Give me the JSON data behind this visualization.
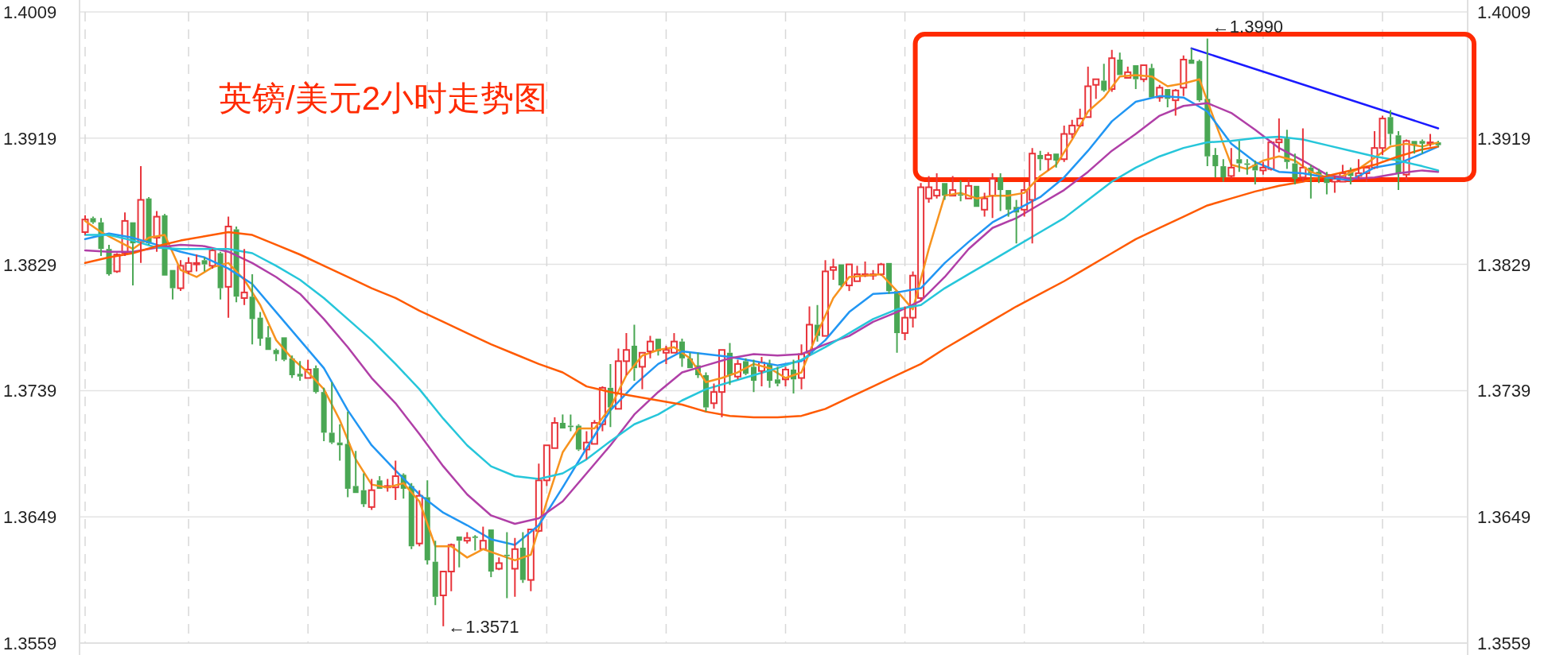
{
  "chart_data": {
    "type": "candlestick",
    "title": "英镑/美元2小时走势图",
    "categories": [
      null,
      null,
      null,
      null,
      null,
      null,
      null,
      null,
      null,
      null,
      null,
      null,
      null,
      null,
      null,
      null,
      null,
      null,
      null,
      null,
      null,
      null,
      null,
      null,
      null,
      null,
      null,
      null,
      null,
      null,
      null,
      null,
      null,
      null,
      null,
      null,
      null,
      null,
      null,
      null,
      null,
      null,
      null,
      null,
      null,
      null,
      null,
      null,
      null,
      null,
      null,
      null,
      null,
      null,
      null,
      null,
      null,
      null,
      null,
      null,
      null,
      null,
      null,
      null,
      null,
      null,
      null,
      null,
      null,
      null,
      null,
      null,
      null,
      null,
      null,
      null,
      null,
      null,
      null,
      null,
      null,
      null,
      null,
      null,
      null,
      null,
      null,
      null,
      null,
      null,
      null,
      null,
      null,
      null,
      null,
      null,
      null,
      null,
      null,
      null,
      null,
      null,
      null,
      null,
      null,
      null,
      null,
      null,
      null,
      null,
      null,
      null,
      null,
      null,
      null,
      null,
      null,
      null,
      null,
      null,
      null,
      null,
      null,
      null,
      null,
      null,
      null,
      null,
      null,
      null,
      null,
      null,
      null,
      null,
      null,
      null,
      null,
      null,
      null,
      null,
      null,
      null,
      null,
      null,
      null,
      null,
      null,
      null,
      null,
      null,
      null,
      null,
      null,
      null,
      null,
      null,
      null,
      null,
      null,
      null,
      null,
      null,
      null,
      null,
      null,
      null,
      null,
      null,
      null,
      null,
      null
    ],
    "ohlc": [
      [
        1.3852,
        1.3864,
        1.385,
        1.3861
      ],
      [
        1.3862,
        1.3863,
        1.3858,
        1.3859
      ],
      [
        1.3859,
        1.3862,
        1.3835,
        1.384
      ],
      [
        1.384,
        1.3843,
        1.3821,
        1.3822
      ],
      [
        1.3824,
        1.3837,
        1.3823,
        1.3836
      ],
      [
        1.3837,
        1.3866,
        1.3835,
        1.386
      ],
      [
        1.3859,
        1.3859,
        1.3814,
        1.3844
      ],
      [
        1.3845,
        1.3899,
        1.383,
        1.3875
      ],
      [
        1.3876,
        1.3877,
        1.3843,
        1.3844
      ],
      [
        1.3848,
        1.3867,
        1.3838,
        1.3863
      ],
      [
        1.3864,
        1.3865,
        1.3821,
        1.3821
      ],
      [
        1.3825,
        1.3825,
        1.3804,
        1.3812
      ],
      [
        1.3812,
        1.3832,
        1.381,
        1.3828
      ],
      [
        1.3824,
        1.3834,
        1.3822,
        1.383
      ],
      [
        1.3829,
        1.3836,
        1.3824,
        1.383
      ],
      [
        1.3832,
        1.3834,
        1.3824,
        1.3829
      ],
      [
        1.3828,
        1.384,
        1.3826,
        1.3839
      ],
      [
        1.3837,
        1.3838,
        1.3804,
        1.3812
      ],
      [
        1.3813,
        1.3863,
        1.3791,
        1.3856
      ],
      [
        1.3854,
        1.3856,
        1.3802,
        1.3806
      ],
      [
        1.3805,
        1.384,
        1.38,
        1.3809
      ],
      [
        1.3806,
        1.3822,
        1.3772,
        1.379
      ],
      [
        1.3791,
        1.3795,
        1.3771,
        1.3776
      ],
      [
        1.3777,
        1.3785,
        1.3768,
        1.3768
      ],
      [
        1.3768,
        1.3769,
        1.376,
        1.3765
      ],
      [
        1.3777,
        1.3777,
        1.376,
        1.3761
      ],
      [
        1.3762,
        1.3764,
        1.3748,
        1.375
      ],
      [
        1.3751,
        1.376,
        1.3746,
        1.3749
      ],
      [
        1.3748,
        1.3761,
        1.3748,
        1.3754
      ],
      [
        1.3755,
        1.3757,
        1.3737,
        1.3738
      ],
      [
        1.3738,
        1.3741,
        1.3703,
        1.3709
      ],
      [
        1.3709,
        1.3745,
        1.3701,
        1.3702
      ],
      [
        1.3702,
        1.3715,
        1.3689,
        1.37
      ],
      [
        1.3701,
        1.3724,
        1.3663,
        1.3669
      ],
      [
        1.3671,
        1.3696,
        1.3666,
        1.3666
      ],
      [
        1.3668,
        1.368,
        1.3656,
        1.3658
      ],
      [
        1.3656,
        1.3676,
        1.3654,
        1.3668
      ],
      [
        1.3675,
        1.3678,
        1.3669,
        1.3669
      ],
      [
        1.367,
        1.3676,
        1.3667,
        1.3671
      ],
      [
        1.367,
        1.3689,
        1.3661,
        1.3678
      ],
      [
        1.3679,
        1.368,
        1.3662,
        1.3669
      ],
      [
        1.3671,
        1.3673,
        1.3626,
        1.3628
      ],
      [
        1.363,
        1.3668,
        1.3628,
        1.3664
      ],
      [
        1.3663,
        1.3675,
        1.3615,
        1.3618
      ],
      [
        1.3617,
        1.3632,
        1.3586,
        1.3592
      ],
      [
        1.3593,
        1.361,
        1.3571,
        1.361
      ],
      [
        1.361,
        1.363,
        1.3596,
        1.3629
      ],
      [
        1.3635,
        1.3635,
        1.3613,
        1.3632
      ],
      [
        1.3632,
        1.3638,
        1.363,
        1.3634
      ],
      [
        1.3635,
        1.3636,
        1.3625,
        1.3634
      ],
      [
        1.3626,
        1.3642,
        1.3626,
        1.3632
      ],
      [
        1.364,
        1.364,
        1.3606,
        1.361
      ],
      [
        1.3612,
        1.362,
        1.3611,
        1.3616
      ],
      [
        1.3622,
        1.3638,
        1.3591,
        1.3621
      ],
      [
        1.3612,
        1.3634,
        1.3592,
        1.3626
      ],
      [
        1.3627,
        1.3638,
        1.3602,
        1.3604
      ],
      [
        1.3604,
        1.364,
        1.3596,
        1.364
      ],
      [
        1.3639,
        1.3687,
        1.3638,
        1.3675
      ],
      [
        1.3675,
        1.37,
        1.3671,
        1.37
      ],
      [
        1.3698,
        1.372,
        1.3698,
        1.3716
      ],
      [
        1.3716,
        1.3722,
        1.3712,
        1.3712
      ],
      [
        1.3714,
        1.3722,
        1.371,
        1.3713
      ],
      [
        1.3714,
        1.3715,
        1.3696,
        1.3697
      ],
      [
        1.3697,
        1.371,
        1.369,
        1.3702
      ],
      [
        1.3701,
        1.3718,
        1.3701,
        1.3716
      ],
      [
        1.3715,
        1.3742,
        1.371,
        1.3741
      ],
      [
        1.3741,
        1.3758,
        1.3713,
        1.3727
      ],
      [
        1.3726,
        1.3769,
        1.3726,
        1.376
      ],
      [
        1.376,
        1.378,
        1.375,
        1.3768
      ],
      [
        1.3771,
        1.3786,
        1.3746,
        1.3755
      ],
      [
        1.3756,
        1.3766,
        1.374,
        1.3766
      ],
      [
        1.3767,
        1.3778,
        1.3762,
        1.3774
      ],
      [
        1.3776,
        1.3776,
        1.3764,
        1.3767
      ],
      [
        1.3766,
        1.3771,
        1.3758,
        1.3768
      ],
      [
        1.3766,
        1.378,
        1.3766,
        1.3774
      ],
      [
        1.3774,
        1.3776,
        1.3756,
        1.3762
      ],
      [
        1.3762,
        1.3766,
        1.3755,
        1.3755
      ],
      [
        1.3757,
        1.3766,
        1.3748,
        1.375
      ],
      [
        1.375,
        1.3752,
        1.3724,
        1.3727
      ],
      [
        1.373,
        1.3744,
        1.3726,
        1.3738
      ],
      [
        1.3738,
        1.3768,
        1.372,
        1.3768
      ],
      [
        1.3766,
        1.3773,
        1.3743,
        1.375
      ],
      [
        1.3749,
        1.3761,
        1.3747,
        1.3758
      ],
      [
        1.376,
        1.3762,
        1.375,
        1.3751
      ],
      [
        1.3756,
        1.3761,
        1.3738,
        1.3746
      ],
      [
        1.3753,
        1.3763,
        1.3742,
        1.3759
      ],
      [
        1.3758,
        1.3761,
        1.3741,
        1.3746
      ],
      [
        1.3747,
        1.3756,
        1.3742,
        1.3744
      ],
      [
        1.3747,
        1.3756,
        1.3742,
        1.3754
      ],
      [
        1.3754,
        1.3761,
        1.3737,
        1.3747
      ],
      [
        1.3748,
        1.3772,
        1.374,
        1.3765
      ],
      [
        1.3766,
        1.3799,
        1.3764,
        1.3786
      ],
      [
        1.3786,
        1.38,
        1.3774,
        1.3778
      ],
      [
        1.3778,
        1.3832,
        1.3778,
        1.3824
      ],
      [
        1.3825,
        1.3833,
        1.3818,
        1.3827
      ],
      [
        1.3829,
        1.3829,
        1.3813,
        1.3814
      ],
      [
        1.3814,
        1.3829,
        1.381,
        1.3829
      ],
      [
        1.3817,
        1.3828,
        1.3817,
        1.3822
      ],
      [
        1.3821,
        1.3831,
        1.382,
        1.3822
      ],
      [
        1.3821,
        1.3825,
        1.3818,
        1.3822
      ],
      [
        1.3822,
        1.383,
        1.3821,
        1.3829
      ],
      [
        1.383,
        1.383,
        1.3808,
        1.381
      ],
      [
        1.381,
        1.381,
        1.3766,
        1.378
      ],
      [
        1.378,
        1.3799,
        1.3775,
        1.3791
      ],
      [
        1.3791,
        1.3824,
        1.3784,
        1.3821
      ],
      [
        1.3805,
        1.3887,
        1.3803,
        1.3884
      ],
      [
        1.3876,
        1.3892,
        1.3873,
        1.3884
      ],
      [
        1.3878,
        1.3894,
        1.3876,
        1.3882
      ],
      [
        1.3887,
        1.3887,
        1.3875,
        1.3878
      ],
      [
        1.3878,
        1.3892,
        1.3878,
        1.3882
      ],
      [
        1.3879,
        1.3889,
        1.3874,
        1.3878
      ],
      [
        1.3876,
        1.389,
        1.3876,
        1.3885
      ],
      [
        1.3885,
        1.3885,
        1.387,
        1.387
      ],
      [
        1.3868,
        1.388,
        1.3863,
        1.3876
      ],
      [
        1.3878,
        1.3894,
        1.3862,
        1.389
      ],
      [
        1.3891,
        1.3894,
        1.3867,
        1.3882
      ],
      [
        1.3882,
        1.3882,
        1.3863,
        1.3868
      ],
      [
        1.387,
        1.3875,
        1.3844,
        1.3866
      ],
      [
        1.3868,
        1.3888,
        1.3863,
        1.3882
      ],
      [
        1.3875,
        1.3912,
        1.3844,
        1.3908
      ],
      [
        1.3907,
        1.391,
        1.3896,
        1.3904
      ],
      [
        1.3904,
        1.3909,
        1.3896,
        1.3907
      ],
      [
        1.3908,
        1.3908,
        1.3898,
        1.3903
      ],
      [
        1.3904,
        1.3928,
        1.3902,
        1.3922
      ],
      [
        1.3922,
        1.3932,
        1.3919,
        1.3928
      ],
      [
        1.3928,
        1.394,
        1.3927,
        1.3933
      ],
      [
        1.3934,
        1.397,
        1.3934,
        1.3956
      ],
      [
        1.3957,
        1.3961,
        1.3947,
        1.3961
      ],
      [
        1.396,
        1.3972,
        1.3952,
        1.3953
      ],
      [
        1.3954,
        1.3982,
        1.3952,
        1.3976
      ],
      [
        1.3975,
        1.398,
        1.3964,
        1.3964
      ],
      [
        1.3962,
        1.397,
        1.3962,
        1.3966
      ],
      [
        1.3971,
        1.3971,
        1.3954,
        1.3961
      ],
      [
        1.3961,
        1.3971,
        1.3959,
        1.3971
      ],
      [
        1.3969,
        1.3972,
        1.3948,
        1.3948
      ],
      [
        1.3948,
        1.3957,
        1.3945,
        1.3955
      ],
      [
        1.3954,
        1.3954,
        1.3941,
        1.3947
      ],
      [
        1.3946,
        1.3954,
        1.3935,
        1.3953
      ],
      [
        1.3955,
        1.3978,
        1.3949,
        1.3975
      ],
      [
        1.3975,
        1.3983,
        1.3972,
        1.3972
      ],
      [
        1.3974,
        1.3975,
        1.3945,
        1.3946
      ],
      [
        1.3947,
        1.399,
        1.3899,
        1.3906
      ],
      [
        1.3907,
        1.3912,
        1.3891,
        1.3899
      ],
      [
        1.3899,
        1.3904,
        1.3888,
        1.3891
      ],
      [
        1.3892,
        1.3912,
        1.389,
        1.3898
      ],
      [
        1.3904,
        1.3917,
        1.3895,
        1.3901
      ],
      [
        1.3901,
        1.3904,
        1.3893,
        1.39
      ],
      [
        1.39,
        1.3903,
        1.3886,
        1.3896
      ],
      [
        1.3896,
        1.3902,
        1.3893,
        1.3898
      ],
      [
        1.3897,
        1.3917,
        1.3896,
        1.3916
      ],
      [
        1.3916,
        1.3933,
        1.3909,
        1.3918
      ],
      [
        1.3919,
        1.3925,
        1.3897,
        1.3902
      ],
      [
        1.3901,
        1.3908,
        1.3886,
        1.389
      ],
      [
        1.3891,
        1.3926,
        1.3888,
        1.3898
      ],
      [
        1.3898,
        1.39,
        1.3876,
        1.3894
      ],
      [
        1.3895,
        1.3897,
        1.3887,
        1.3892
      ],
      [
        1.3892,
        1.3895,
        1.3879,
        1.3887
      ],
      [
        1.3888,
        1.3892,
        1.388,
        1.389
      ],
      [
        1.3888,
        1.39,
        1.3888,
        1.3894
      ],
      [
        1.3896,
        1.3898,
        1.3886,
        1.3892
      ],
      [
        1.3892,
        1.3904,
        1.389,
        1.3894
      ],
      [
        1.3894,
        1.3899,
        1.3888,
        1.3898
      ],
      [
        1.3898,
        1.3924,
        1.3897,
        1.3912
      ],
      [
        1.3912,
        1.3935,
        1.3907,
        1.3933
      ],
      [
        1.3934,
        1.3939,
        1.3914,
        1.3922
      ],
      [
        1.3921,
        1.3924,
        1.3882,
        1.3894
      ],
      [
        1.3893,
        1.3918,
        1.3889,
        1.3917
      ],
      [
        1.3917,
        1.3917,
        1.3908,
        1.3914
      ],
      [
        1.3917,
        1.3918,
        1.3908,
        1.3915
      ],
      [
        1.3915,
        1.3922,
        1.3913,
        1.3916
      ],
      [
        1.3916,
        1.3917,
        1.3913,
        1.3914
      ]
    ],
    "series": [
      {
        "type": "line",
        "color": "#f7931e",
        "values": [
          1.386,
          null,
          1.3852,
          null,
          1.3846,
          null,
          1.384,
          null,
          1.3848,
          null,
          1.385,
          null,
          1.3825,
          null,
          1.382,
          null,
          1.3827,
          null,
          1.383,
          null,
          1.3818,
          null,
          1.38,
          null,
          1.3775,
          null,
          1.3762,
          null,
          1.3752,
          null,
          1.374,
          null,
          1.3718,
          null,
          1.369,
          null,
          1.3672,
          null,
          1.367,
          null,
          1.3673,
          null,
          1.366,
          null,
          1.3628,
          null,
          1.3628,
          null,
          1.362,
          null,
          1.3626,
          null,
          1.3622,
          null,
          1.3618,
          null,
          1.3622,
          null,
          1.366,
          null,
          1.3695,
          null,
          1.3712,
          null,
          1.3712,
          null,
          1.3727,
          null,
          1.375,
          null,
          1.3764,
          null,
          1.3768,
          null,
          1.377,
          null,
          1.3762,
          null,
          1.3745,
          null,
          1.3748,
          null,
          1.3752,
          null,
          1.3758,
          null,
          1.3755,
          null,
          1.3748,
          null,
          1.3752,
          null,
          1.378,
          null,
          1.3805,
          null,
          1.382,
          null,
          1.3821,
          null,
          1.3822,
          null,
          1.381,
          null,
          1.3797,
          null,
          1.384,
          null,
          1.3878,
          null,
          1.388,
          null,
          1.3876,
          null,
          1.3878,
          null,
          1.3878,
          null,
          1.388,
          null,
          1.3892,
          null,
          1.39,
          null,
          1.3918,
          null,
          1.3938,
          null,
          1.3948,
          null,
          1.3963,
          null,
          1.3964,
          null,
          1.3963,
          null,
          1.3956,
          null,
          1.3958,
          null,
          1.3961,
          null,
          1.393,
          null,
          1.39,
          null,
          1.3897,
          null,
          1.3903,
          null,
          1.3906,
          null,
          1.3903,
          null,
          1.3895,
          null,
          1.3891,
          null,
          1.3892,
          null,
          1.3897,
          null,
          1.3905,
          null,
          1.3913,
          null,
          1.3915,
          null,
          1.3913,
          null,
          1.3916
        ]
      },
      {
        "type": "line",
        "color": "#2196f3",
        "values": [
          1.3847,
          null,
          null,
          1.3851,
          null,
          null,
          1.3848,
          null,
          null,
          1.3843,
          null,
          null,
          1.3838,
          null,
          null,
          1.3834,
          null,
          null,
          1.3826,
          null,
          null,
          1.3815,
          null,
          null,
          1.3795,
          null,
          null,
          1.3775,
          null,
          null,
          1.3755,
          null,
          null,
          1.3725,
          null,
          null,
          1.37,
          null,
          null,
          1.3682,
          null,
          null,
          1.3665,
          null,
          null,
          1.3652,
          null,
          null,
          1.3643,
          null,
          null,
          1.3633,
          null,
          null,
          1.3629,
          null,
          null,
          1.3643,
          null,
          null,
          1.367,
          null,
          null,
          1.3698,
          null,
          null,
          1.3725,
          null,
          null,
          1.3743,
          null,
          null,
          1.3758,
          null,
          null,
          1.3767,
          null,
          null,
          1.3765,
          null,
          null,
          1.3763,
          null,
          null,
          1.376,
          null,
          null,
          1.3757,
          null,
          null,
          1.376,
          null,
          null,
          1.3775,
          null,
          null,
          1.3795,
          null,
          null,
          1.3808,
          null,
          null,
          1.3809,
          null,
          null,
          1.3812,
          null,
          null,
          1.383,
          null,
          null,
          1.3845,
          null,
          null,
          1.3859,
          null,
          null,
          1.3868,
          null,
          null,
          1.3877,
          null,
          null,
          1.3891,
          null,
          null,
          1.391,
          null,
          null,
          1.3931,
          null,
          null,
          1.3945,
          null,
          null,
          1.3949,
          null,
          null,
          1.3948,
          null,
          null,
          1.3938,
          null,
          null,
          1.3915,
          null,
          null,
          1.3902,
          null,
          null,
          1.3895,
          null,
          null,
          1.3894,
          null,
          null,
          1.3891,
          null,
          null,
          1.3889,
          null,
          null,
          1.3898,
          null,
          null,
          1.3901,
          null,
          null,
          1.3908,
          null,
          1.3913
        ]
      },
      {
        "type": "line",
        "color": "#b03fa7",
        "values": [
          1.3839,
          null,
          null,
          1.3838,
          null,
          null,
          1.3838,
          null,
          null,
          1.3841,
          null,
          null,
          1.3843,
          null,
          null,
          1.3842,
          null,
          null,
          1.3838,
          null,
          null,
          1.383,
          null,
          null,
          1.382,
          null,
          null,
          1.3808,
          null,
          null,
          1.379,
          null,
          null,
          1.377,
          null,
          null,
          1.3748,
          null,
          null,
          1.373,
          null,
          null,
          1.3708,
          null,
          null,
          1.3685,
          null,
          null,
          1.3665,
          null,
          null,
          1.365,
          null,
          null,
          1.3644,
          null,
          null,
          1.3648,
          null,
          null,
          1.366,
          null,
          null,
          1.368,
          null,
          null,
          1.37,
          null,
          null,
          1.3722,
          null,
          null,
          1.3738,
          null,
          null,
          1.3752,
          null,
          null,
          1.3757,
          null,
          null,
          1.3762,
          null,
          null,
          1.3765,
          null,
          null,
          1.3764,
          null,
          null,
          1.3765,
          null,
          null,
          1.3772,
          null,
          null,
          1.3778,
          null,
          null,
          1.3788,
          null,
          null,
          1.3795,
          null,
          null,
          1.3803,
          null,
          null,
          1.382,
          null,
          null,
          1.384,
          null,
          null,
          1.3855,
          null,
          null,
          1.3862,
          null,
          null,
          1.3872,
          null,
          null,
          1.3882,
          null,
          null,
          1.3895,
          null,
          null,
          1.391,
          null,
          null,
          1.3922,
          null,
          null,
          1.3935,
          null,
          null,
          1.3942,
          null,
          null,
          1.3944,
          null,
          null,
          1.3937,
          null,
          null,
          1.3925,
          null,
          null,
          1.3912,
          null,
          null,
          1.3903,
          null,
          null,
          1.3893,
          null,
          null,
          1.389,
          null,
          null,
          1.3891,
          null,
          null,
          1.3894,
          null,
          null,
          1.3896,
          null,
          1.3895
        ]
      },
      {
        "type": "line",
        "color": "#26c6da",
        "values": [
          1.385,
          null,
          null,
          1.385,
          null,
          null,
          1.3846,
          null,
          null,
          1.3841,
          null,
          null,
          1.384,
          null,
          null,
          1.384,
          null,
          null,
          1.384,
          null,
          null,
          1.3837,
          null,
          null,
          1.3828,
          null,
          null,
          1.3818,
          null,
          null,
          1.3805,
          null,
          null,
          1.379,
          null,
          null,
          1.3775,
          null,
          null,
          1.3758,
          null,
          null,
          1.374,
          null,
          null,
          1.3719,
          null,
          null,
          1.37,
          null,
          null,
          1.3685,
          null,
          null,
          1.3678,
          null,
          null,
          1.3676,
          null,
          null,
          1.368,
          null,
          null,
          1.369,
          null,
          null,
          1.3703,
          null,
          null,
          1.3715,
          null,
          null,
          1.3722,
          null,
          null,
          1.3732,
          null,
          null,
          1.374,
          null,
          null,
          1.3745,
          null,
          null,
          1.375,
          null,
          null,
          1.3755,
          null,
          null,
          1.3761,
          null,
          null,
          1.377,
          null,
          null,
          1.378,
          null,
          null,
          1.379,
          null,
          null,
          1.3797,
          null,
          null,
          1.38,
          null,
          null,
          1.3812,
          null,
          null,
          1.3822,
          null,
          null,
          1.3832,
          null,
          null,
          1.3842,
          null,
          null,
          1.3852,
          null,
          null,
          1.3862,
          null,
          null,
          1.3875,
          null,
          null,
          1.3888,
          null,
          null,
          1.3898,
          null,
          null,
          1.3906,
          null,
          null,
          1.3912,
          null,
          null,
          1.3916,
          null,
          null,
          1.3917,
          null,
          null,
          1.3919,
          null,
          null,
          1.392,
          null,
          null,
          1.3918,
          null,
          null,
          1.3914,
          null,
          null,
          1.391,
          null,
          null,
          1.3906,
          null,
          null,
          1.3903,
          null,
          null,
          1.3899,
          null,
          1.3896
        ]
      },
      {
        "type": "line",
        "color": "#ff5a00",
        "values": [
          1.383,
          null,
          null,
          1.3834,
          null,
          null,
          1.3837,
          null,
          null,
          1.3842,
          null,
          null,
          1.3846,
          null,
          null,
          1.3849,
          null,
          null,
          1.3852,
          null,
          null,
          1.385,
          null,
          null,
          1.3843,
          null,
          null,
          1.3836,
          null,
          null,
          1.3828,
          null,
          null,
          1.382,
          null,
          null,
          1.3812,
          null,
          null,
          1.3805,
          null,
          null,
          1.3796,
          null,
          null,
          1.3788,
          null,
          null,
          1.378,
          null,
          null,
          1.3772,
          null,
          null,
          1.3765,
          null,
          null,
          1.3758,
          null,
          null,
          1.3752,
          null,
          null,
          1.3742,
          null,
          null,
          1.3738,
          null,
          null,
          1.3735,
          null,
          null,
          1.3732,
          null,
          null,
          1.3729,
          null,
          null,
          1.3724,
          null,
          null,
          1.3721,
          null,
          null,
          1.372,
          null,
          null,
          1.372,
          null,
          null,
          1.3721,
          null,
          null,
          1.3726,
          null,
          null,
          1.3734,
          null,
          null,
          1.3742,
          null,
          null,
          1.375,
          null,
          null,
          1.3758,
          null,
          null,
          1.3769,
          null,
          null,
          1.3779,
          null,
          null,
          1.3789,
          null,
          null,
          1.3799,
          null,
          null,
          1.3808,
          null,
          null,
          1.3817,
          null,
          null,
          1.3827,
          null,
          null,
          1.3837,
          null,
          null,
          1.3847,
          null,
          null,
          1.3855,
          null,
          null,
          1.3863,
          null,
          null,
          1.3871,
          null,
          null,
          1.3876,
          null,
          null,
          1.3881,
          null,
          null,
          1.3885,
          null,
          null,
          1.3888,
          null,
          null,
          1.3892,
          null,
          null,
          1.3896,
          null,
          null,
          1.39,
          null,
          null,
          1.3906,
          null,
          null,
          1.3911,
          null,
          1.3913
        ]
      },
      {
        "type": "line",
        "color": "#1a1aff",
        "values": [
          null,
          null,
          null,
          null,
          null,
          null,
          null,
          null,
          null,
          null,
          null,
          null,
          null,
          null,
          null,
          null,
          null,
          null,
          null,
          null,
          null,
          null,
          null,
          null,
          null,
          null,
          null,
          null,
          null,
          null,
          null,
          null,
          null,
          null,
          null,
          null,
          null,
          null,
          null,
          null,
          null,
          null,
          null,
          null,
          null,
          null,
          null,
          null,
          null,
          null,
          null,
          null,
          null,
          null,
          null,
          null,
          null,
          null,
          null,
          null,
          null,
          null,
          null,
          null,
          null,
          null,
          null,
          null,
          null,
          null,
          null,
          null,
          null,
          null,
          null,
          null,
          null,
          null,
          null,
          null,
          null,
          null,
          null,
          null,
          null,
          null,
          null,
          null,
          null,
          null,
          null,
          null,
          null,
          null,
          null,
          null,
          null,
          null,
          null,
          null,
          null,
          null,
          null,
          null,
          null,
          null,
          null,
          null,
          null,
          null,
          null,
          null,
          null,
          null,
          null,
          null,
          null,
          null,
          null,
          null,
          null,
          null,
          null,
          null,
          null,
          null,
          null,
          null,
          null,
          null,
          null,
          null,
          null,
          null,
          null,
          null,
          null,
          null,
          null,
          1.3983,
          null,
          null,
          null,
          null,
          null,
          null,
          null,
          null,
          null,
          null,
          null,
          null,
          null,
          null,
          null,
          null,
          null,
          null,
          null,
          null,
          null,
          null,
          null,
          null,
          null,
          null,
          null,
          null,
          null,
          null,
          1.3926
        ]
      }
    ],
    "ylim": [
      1.3559,
      1.4009
    ],
    "yticks": [
      1.3559,
      1.3649,
      1.3739,
      1.3829,
      1.3919,
      1.4009
    ],
    "y2lim": [
      1.3559,
      1.4009
    ],
    "y2ticks": [
      1.3559,
      1.3649,
      1.3739,
      1.3829,
      1.3919,
      1.4009
    ],
    "annotations": [
      "←1.3990",
      "←1.3571"
    ],
    "grid": true
  }
}
